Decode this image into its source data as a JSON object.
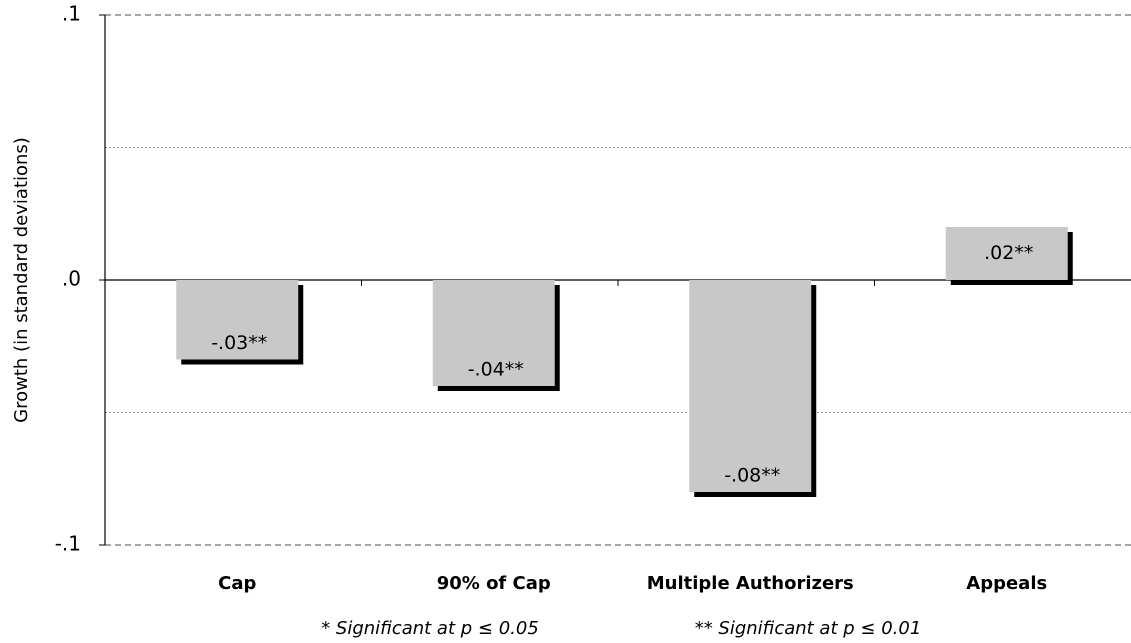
{
  "chart_data": {
    "type": "bar",
    "y_label": "Growth (in standard deviations)",
    "categories": [
      "Cap",
      "90% of Cap",
      "Multiple Authorizers",
      "Appeals"
    ],
    "values": [
      -0.03,
      -0.04,
      -0.08,
      0.02
    ],
    "value_labels": [
      "-.03**",
      "-.04**",
      "-.08**",
      ".02**"
    ],
    "color": "#c8c8c8",
    "shadow_color": "#000000",
    "ylim": [
      -0.1,
      0.1
    ],
    "yticks": [
      {
        "value": -0.1,
        "label": "-.1"
      },
      {
        "value": 0,
        "label": ".0"
      },
      {
        "value": 0.1,
        "label": ".1"
      }
    ],
    "minor_grid": [
      -0.05,
      0.05
    ],
    "grid": true,
    "footnotes": [
      "* Significant at p ≤ 0.05",
      "** Significant at p ≤ 0.01"
    ]
  }
}
